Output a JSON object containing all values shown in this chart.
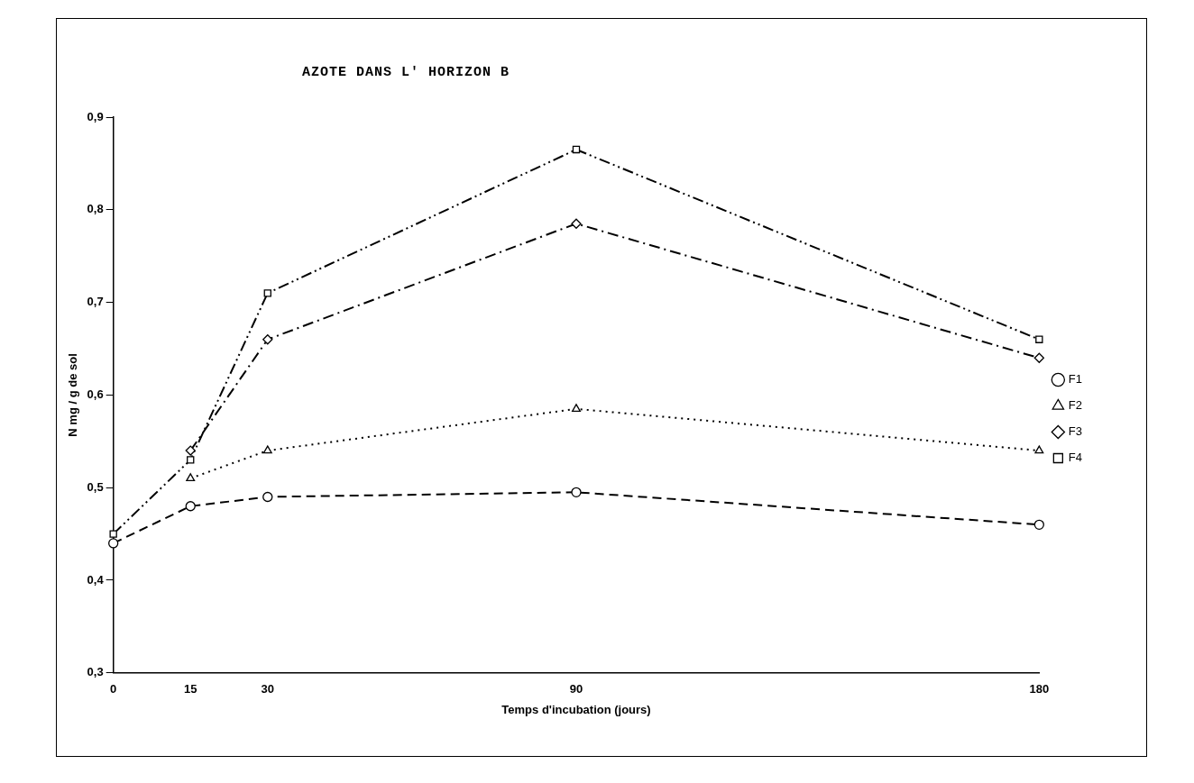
{
  "chart_data": {
    "type": "line",
    "title": "AZOTE DANS L' HORIZON B",
    "xlabel": "Temps d'incubation (jours)",
    "ylabel": "N mg / g de sol",
    "x": [
      0,
      15,
      30,
      90,
      180
    ],
    "series": [
      {
        "name": "F1",
        "color": "#000000",
        "marker": "circle",
        "line_style": "dashed",
        "values": [
          0.44,
          0.48,
          0.49,
          0.495,
          0.46
        ]
      },
      {
        "name": "F2",
        "color": "#000000",
        "marker": "triangle",
        "line_style": "dotted",
        "values": [
          null,
          0.51,
          0.54,
          0.585,
          0.54
        ]
      },
      {
        "name": "F3",
        "color": "#000000",
        "marker": "diamond",
        "line_style": "dashdot",
        "values": [
          null,
          0.54,
          0.66,
          0.785,
          0.64
        ]
      },
      {
        "name": "F4",
        "color": "#000000",
        "marker": "square",
        "line_style": "dashdotdot",
        "values": [
          0.45,
          0.53,
          0.71,
          0.865,
          0.66
        ]
      }
    ],
    "xlim": [
      0,
      180
    ],
    "xticks": [
      0,
      15,
      30,
      90,
      180
    ],
    "ylim": [
      0.3,
      0.9
    ],
    "yticks": [
      {
        "value": 0.3,
        "label": "0,3"
      },
      {
        "value": 0.4,
        "label": "0,4"
      },
      {
        "value": 0.5,
        "label": "0,5"
      },
      {
        "value": 0.6,
        "label": "0,6"
      },
      {
        "value": 0.7,
        "label": "0,7"
      },
      {
        "value": 0.8,
        "label": "0,8"
      },
      {
        "value": 0.9,
        "label": "0,9"
      }
    ],
    "grid": false,
    "legend": "right"
  }
}
